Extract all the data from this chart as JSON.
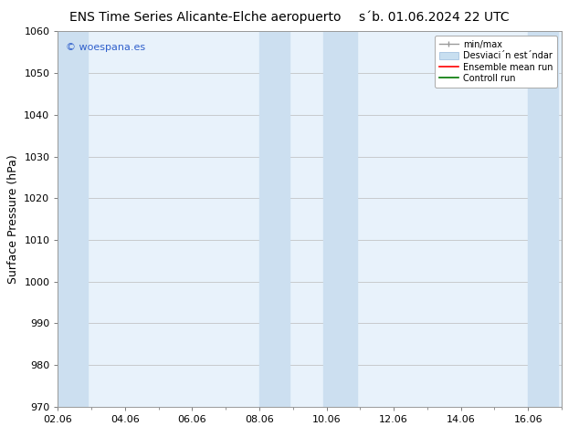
{
  "title_left": "ENS Time Series Alicante-Elche aeropuerto",
  "title_right": "s´b. 01.06.2024 22 UTC",
  "ylabel": "Surface Pressure (hPa)",
  "ylim": [
    970,
    1060
  ],
  "yticks": [
    970,
    980,
    990,
    1000,
    1010,
    1020,
    1030,
    1040,
    1050,
    1060
  ],
  "xlim_start": 0.0,
  "xlim_end": 15.0,
  "xtick_labels": [
    "02.06",
    "04.06",
    "06.06",
    "08.06",
    "10.06",
    "12.06",
    "14.06",
    "16.06"
  ],
  "xtick_positions": [
    0,
    2,
    4,
    6,
    8,
    10,
    12,
    14
  ],
  "shaded_bands": [
    {
      "x_start": 0.0,
      "x_end": 0.9,
      "color": "#ccdff0"
    },
    {
      "x_start": 6.0,
      "x_end": 6.9,
      "color": "#ccdff0"
    },
    {
      "x_start": 7.9,
      "x_end": 8.9,
      "color": "#ccdff0"
    },
    {
      "x_start": 14.0,
      "x_end": 14.9,
      "color": "#ccdff0"
    },
    {
      "x_start": 15.0,
      "x_end": 15.0,
      "color": "#ccdff0"
    }
  ],
  "plot_bg_color": "#e8f2fb",
  "fig_bg_color": "#ffffff",
  "watermark_text": "© woespana.es",
  "watermark_color": "#3060cc",
  "legend_label_minmax": "min/max",
  "legend_label_std": "Desviaci´n est´ndar",
  "legend_label_ens": "Ensemble mean run",
  "legend_label_ctrl": "Controll run",
  "legend_color_minmax": "#999999",
  "legend_color_std": "#c8dff0",
  "legend_color_ens": "#ff0000",
  "legend_color_ctrl": "#007700",
  "title_fontsize": 10,
  "ylabel_fontsize": 9,
  "tick_fontsize": 8,
  "legend_fontsize": 7,
  "watermark_fontsize": 8
}
